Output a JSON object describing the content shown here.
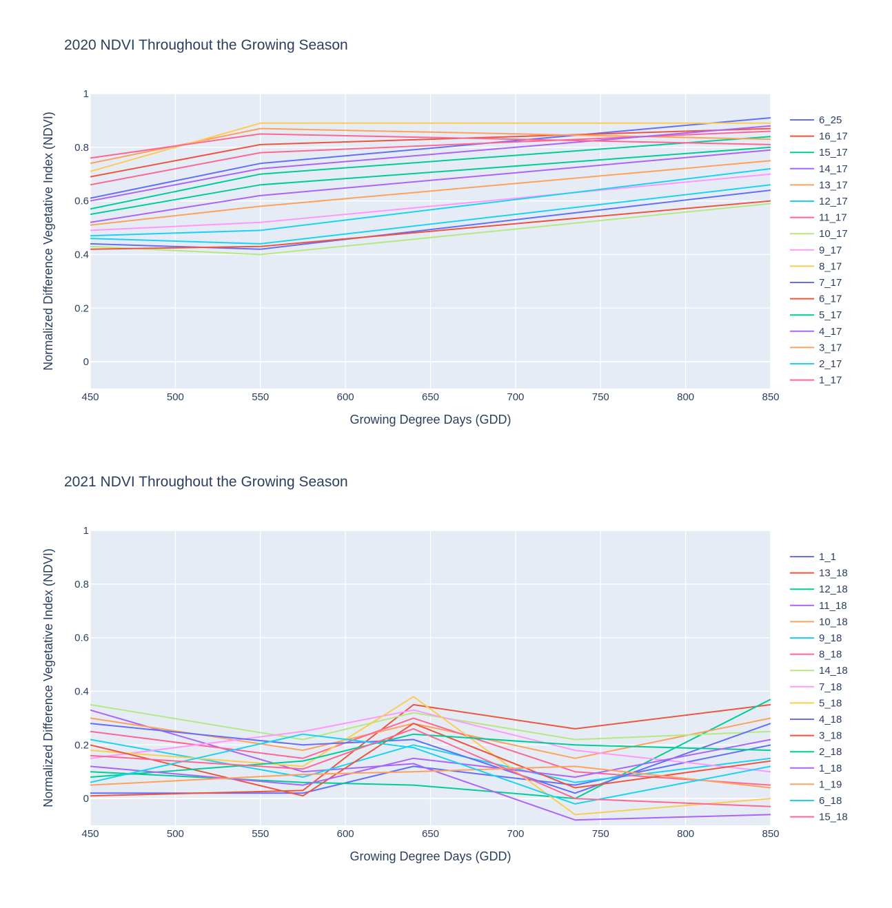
{
  "chart_data": [
    {
      "type": "line",
      "title": "2020 NDVI Throughout the Growing Season",
      "xlabel": "Growing Degree Days (GDD)",
      "ylabel": "Normalized Difference Vegetative Index (NDVI)",
      "xlim": [
        450,
        850
      ],
      "ylim": [
        -0.1,
        1
      ],
      "xticks": [
        450,
        500,
        550,
        600,
        650,
        700,
        750,
        800,
        850
      ],
      "yticks": [
        0,
        0.2,
        0.4,
        0.6,
        0.8,
        1
      ],
      "grid": true,
      "legend": "right",
      "x": [
        450,
        550,
        850
      ],
      "series": [
        {
          "name": "6_25",
          "color": "#636efa",
          "values": [
            0.61,
            0.74,
            0.91
          ]
        },
        {
          "name": "16_17",
          "color": "#EF553B",
          "values": [
            0.69,
            0.81,
            0.87
          ]
        },
        {
          "name": "15_17",
          "color": "#00cc96",
          "values": [
            0.57,
            0.7,
            0.84
          ]
        },
        {
          "name": "14_17",
          "color": "#ab63fa",
          "values": [
            0.52,
            0.62,
            0.79
          ]
        },
        {
          "name": "13_17",
          "color": "#FFA15A",
          "values": [
            0.74,
            0.87,
            0.83
          ]
        },
        {
          "name": "12_17",
          "color": "#19d3f3",
          "values": [
            0.46,
            0.44,
            0.66
          ]
        },
        {
          "name": "11_17",
          "color": "#FF6692",
          "values": [
            0.66,
            0.78,
            0.86
          ]
        },
        {
          "name": "10_17",
          "color": "#B6E880",
          "values": [
            0.43,
            0.4,
            0.59
          ]
        },
        {
          "name": "9_17",
          "color": "#FF97FF",
          "values": [
            0.49,
            0.52,
            0.7
          ]
        },
        {
          "name": "8_17",
          "color": "#FECB52",
          "values": [
            0.71,
            0.89,
            0.89
          ]
        },
        {
          "name": "7_17",
          "color": "#636efa",
          "values": [
            0.44,
            0.42,
            0.64
          ]
        },
        {
          "name": "6_17",
          "color": "#EF553B",
          "values": [
            0.42,
            0.43,
            0.6
          ]
        },
        {
          "name": "5_17",
          "color": "#00cc96",
          "values": [
            0.55,
            0.66,
            0.8
          ]
        },
        {
          "name": "4_17",
          "color": "#ab63fa",
          "values": [
            0.6,
            0.72,
            0.88
          ]
        },
        {
          "name": "3_17",
          "color": "#FFA15A",
          "values": [
            0.51,
            0.58,
            0.75
          ]
        },
        {
          "name": "2_17",
          "color": "#19d3f3",
          "values": [
            0.47,
            0.49,
            0.72
          ]
        },
        {
          "name": "1_17",
          "color": "#FF6692",
          "values": [
            0.76,
            0.85,
            0.81
          ]
        }
      ]
    },
    {
      "type": "line",
      "title": "2021 NDVI Throughout the Growing Season",
      "xlabel": "Growing Degree Days (GDD)",
      "ylabel": "Normalized Difference Vegetative Index (NDVI)",
      "xlim": [
        450,
        850
      ],
      "ylim": [
        -0.1,
        1
      ],
      "xticks": [
        450,
        500,
        550,
        600,
        650,
        700,
        750,
        800,
        850
      ],
      "yticks": [
        0,
        0.2,
        0.4,
        0.6,
        0.8,
        1
      ],
      "grid": true,
      "legend": "right",
      "x": [
        450,
        575,
        640,
        735,
        850
      ],
      "series": [
        {
          "name": "1_1",
          "color": "#636efa",
          "values": [
            0.02,
            0.02,
            0.12,
            0.05,
            0.2
          ]
        },
        {
          "name": "13_18",
          "color": "#EF553B",
          "values": [
            0.01,
            0.03,
            0.35,
            0.26,
            0.35
          ]
        },
        {
          "name": "12_18",
          "color": "#00cc96",
          "values": [
            0.1,
            0.06,
            0.05,
            0.0,
            0.37
          ]
        },
        {
          "name": "11_18",
          "color": "#ab63fa",
          "values": [
            0.33,
            0.1,
            0.13,
            -0.08,
            -0.06
          ]
        },
        {
          "name": "10_18",
          "color": "#FFA15A",
          "values": [
            0.3,
            0.18,
            0.28,
            0.15,
            0.3
          ]
        },
        {
          "name": "9_18",
          "color": "#19d3f3",
          "values": [
            0.22,
            0.08,
            0.2,
            0.06,
            0.15
          ]
        },
        {
          "name": "8_18",
          "color": "#FF6692",
          "values": [
            0.25,
            0.15,
            0.3,
            0.1,
            0.05
          ]
        },
        {
          "name": "14_18",
          "color": "#B6E880",
          "values": [
            0.35,
            0.22,
            0.32,
            0.22,
            0.25
          ]
        },
        {
          "name": "7_18",
          "color": "#FF97FF",
          "values": [
            0.15,
            0.25,
            0.33,
            0.18,
            0.1
          ]
        },
        {
          "name": "5_18",
          "color": "#FECB52",
          "values": [
            0.18,
            0.12,
            0.38,
            -0.06,
            0.0
          ]
        },
        {
          "name": "4_18",
          "color": "#636efa",
          "values": [
            0.28,
            0.2,
            0.22,
            0.02,
            0.28
          ]
        },
        {
          "name": "3_18",
          "color": "#EF553B",
          "values": [
            0.2,
            0.01,
            0.28,
            0.04,
            0.14
          ]
        },
        {
          "name": "2_18",
          "color": "#00cc96",
          "values": [
            0.08,
            0.14,
            0.24,
            0.2,
            0.18
          ]
        },
        {
          "name": "1_18",
          "color": "#ab63fa",
          "values": [
            0.12,
            0.05,
            0.15,
            0.08,
            0.22
          ]
        },
        {
          "name": "1_19",
          "color": "#FFA15A",
          "values": [
            0.05,
            0.09,
            0.1,
            0.12,
            0.04
          ]
        },
        {
          "name": "6_18",
          "color": "#19d3f3",
          "values": [
            0.06,
            0.24,
            0.19,
            -0.02,
            0.12
          ]
        },
        {
          "name": "15_18",
          "color": "#FF6692",
          "values": [
            0.16,
            0.11,
            0.26,
            0.0,
            -0.03
          ]
        }
      ]
    }
  ]
}
